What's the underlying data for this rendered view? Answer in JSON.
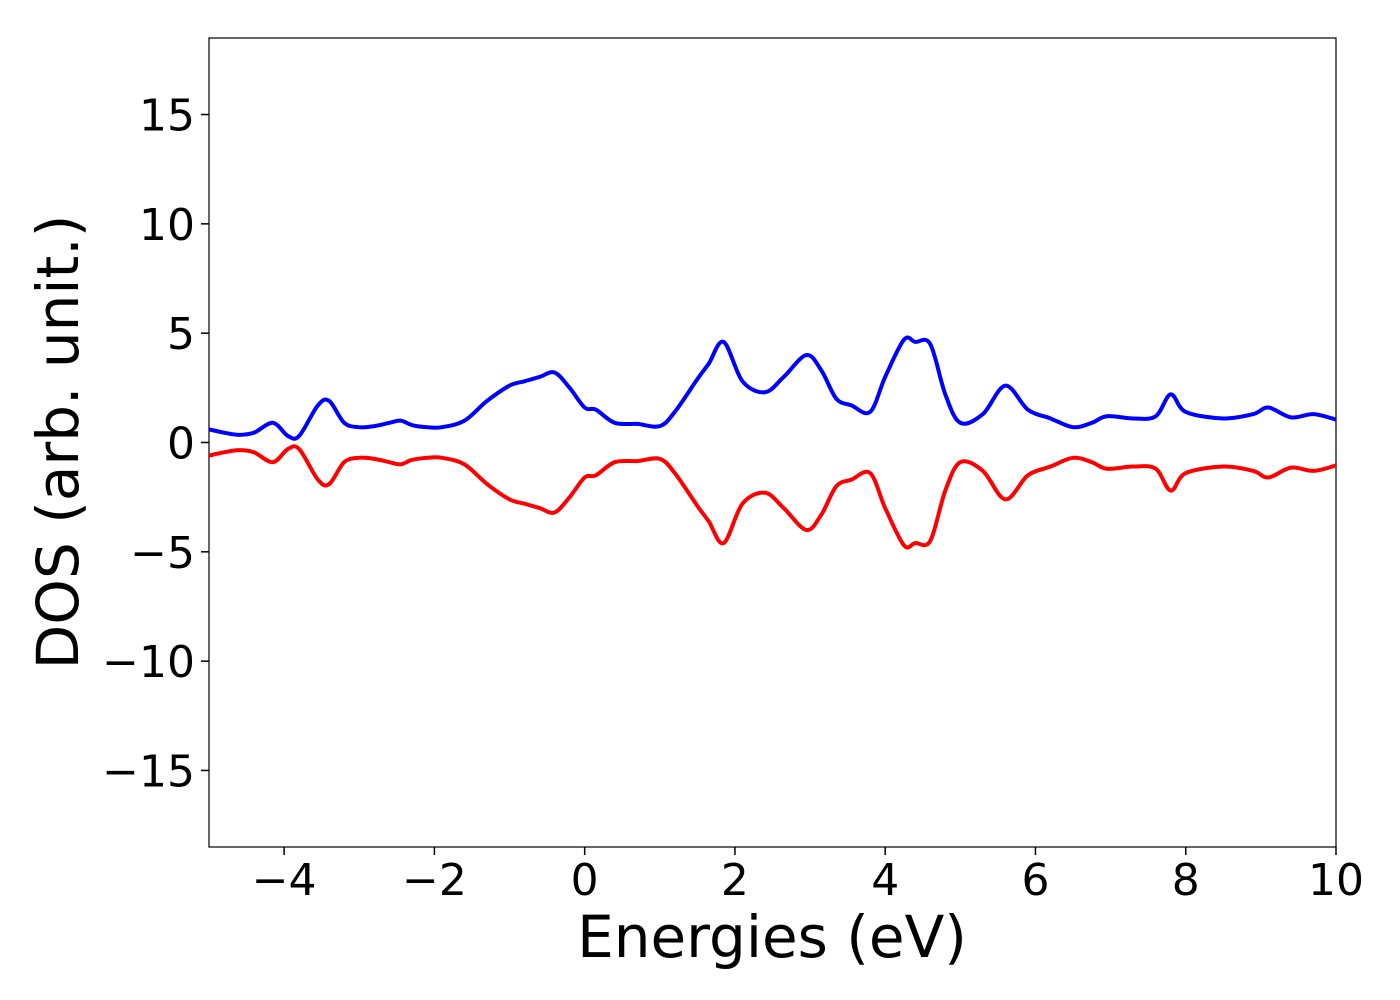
{
  "chart_data": {
    "type": "line",
    "xlabel": "Energies (eV)",
    "ylabel": "DOS (arb. unit.)",
    "xlim": [
      -5,
      10
    ],
    "ylim": [
      -18.5,
      18.5
    ],
    "x_ticks": [
      -4,
      -2,
      0,
      2,
      4,
      6,
      8,
      10
    ],
    "x_tick_labels": [
      "−4",
      "−2",
      "0",
      "2",
      "4",
      "6",
      "8",
      "10"
    ],
    "y_ticks": [
      -15,
      -10,
      -5,
      0,
      5,
      10,
      15
    ],
    "y_tick_labels": [
      "−15",
      "−10",
      "−5",
      "0",
      "5",
      "10",
      "15"
    ],
    "grid": false,
    "x": [
      -5.0,
      -4.8,
      -4.6,
      -4.4,
      -4.15,
      -3.95,
      -3.8,
      -3.55,
      -3.4,
      -3.2,
      -3.0,
      -2.8,
      -2.6,
      -2.45,
      -2.3,
      -2.1,
      -1.9,
      -1.6,
      -1.3,
      -1.0,
      -0.8,
      -0.6,
      -0.4,
      -0.2,
      0.0,
      0.15,
      0.4,
      0.7,
      1.0,
      1.2,
      1.5,
      1.65,
      1.85,
      2.1,
      2.4,
      2.65,
      2.95,
      3.15,
      3.35,
      3.55,
      3.8,
      4.0,
      4.25,
      4.4,
      4.6,
      4.8,
      5.0,
      5.3,
      5.6,
      5.9,
      6.2,
      6.5,
      6.75,
      6.95,
      7.3,
      7.6,
      7.8,
      8.0,
      8.5,
      8.9,
      9.1,
      9.4,
      9.7,
      10.0
    ],
    "series": [
      {
        "color": "#0000ff",
        "values": [
          0.6,
          0.45,
          0.35,
          0.45,
          0.9,
          0.3,
          0.3,
          1.7,
          1.9,
          0.9,
          0.7,
          0.75,
          0.9,
          1.0,
          0.8,
          0.7,
          0.7,
          1.0,
          1.9,
          2.6,
          2.8,
          3.0,
          3.2,
          2.5,
          1.6,
          1.5,
          0.9,
          0.85,
          0.75,
          1.4,
          2.9,
          3.6,
          4.6,
          2.8,
          2.3,
          3.0,
          4.0,
          3.3,
          2.0,
          1.7,
          1.4,
          3.0,
          4.7,
          4.6,
          4.5,
          2.2,
          0.9,
          1.3,
          2.6,
          1.5,
          1.1,
          0.7,
          0.9,
          1.2,
          1.1,
          1.2,
          2.2,
          1.4,
          1.1,
          1.3,
          1.6,
          1.15,
          1.3,
          1.05
        ]
      },
      {
        "color": "#ff0000",
        "values": [
          -0.6,
          -0.45,
          -0.35,
          -0.45,
          -0.9,
          -0.3,
          -0.3,
          -1.7,
          -1.9,
          -0.9,
          -0.7,
          -0.75,
          -0.9,
          -1.0,
          -0.8,
          -0.7,
          -0.7,
          -1.0,
          -1.9,
          -2.6,
          -2.8,
          -3.0,
          -3.2,
          -2.5,
          -1.6,
          -1.5,
          -0.9,
          -0.85,
          -0.75,
          -1.4,
          -2.9,
          -3.6,
          -4.6,
          -2.8,
          -2.3,
          -3.0,
          -4.0,
          -3.3,
          -2.0,
          -1.7,
          -1.4,
          -3.0,
          -4.7,
          -4.6,
          -4.5,
          -2.2,
          -0.9,
          -1.3,
          -2.6,
          -1.5,
          -1.1,
          -0.7,
          -0.9,
          -1.2,
          -1.1,
          -1.2,
          -2.2,
          -1.4,
          -1.1,
          -1.3,
          -1.6,
          -1.15,
          -1.3,
          -1.05
        ]
      }
    ]
  }
}
